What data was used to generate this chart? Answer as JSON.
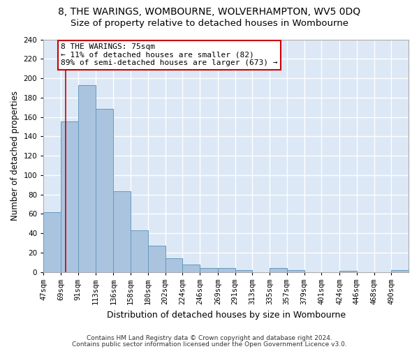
{
  "title1": "8, THE WARINGS, WOMBOURNE, WOLVERHAMPTON, WV5 0DQ",
  "title2": "Size of property relative to detached houses in Wombourne",
  "xlabel": "Distribution of detached houses by size in Wombourne",
  "ylabel": "Number of detached properties",
  "footer1": "Contains HM Land Registry data © Crown copyright and database right 2024.",
  "footer2": "Contains public sector information licensed under the Open Government Licence v3.0.",
  "bin_labels": [
    "47sqm",
    "69sqm",
    "91sqm",
    "113sqm",
    "136sqm",
    "158sqm",
    "180sqm",
    "202sqm",
    "224sqm",
    "246sqm",
    "269sqm",
    "291sqm",
    "313sqm",
    "335sqm",
    "357sqm",
    "379sqm",
    "401sqm",
    "424sqm",
    "446sqm",
    "468sqm",
    "490sqm"
  ],
  "bar_values": [
    62,
    155,
    193,
    168,
    83,
    43,
    27,
    14,
    8,
    4,
    4,
    2,
    0,
    4,
    2,
    0,
    0,
    1,
    0,
    0,
    2
  ],
  "bin_edges": [
    47,
    69,
    91,
    113,
    136,
    158,
    180,
    202,
    224,
    246,
    269,
    291,
    313,
    335,
    357,
    379,
    401,
    424,
    446,
    468,
    490,
    512
  ],
  "bar_color": "#aac4df",
  "bar_edge_color": "#6699bb",
  "annotation_text": "8 THE WARINGS: 75sqm\n← 11% of detached houses are smaller (82)\n89% of semi-detached houses are larger (673) →",
  "annotation_box_color": "#ffffff",
  "annotation_box_edge": "#cc0000",
  "vline_x": 75,
  "vline_color": "#cc0000",
  "ylim": [
    0,
    240
  ],
  "background_color": "#dce8f5",
  "grid_color": "#ffffff",
  "fig_background": "#ffffff",
  "title1_fontsize": 10,
  "title2_fontsize": 9.5,
  "annotation_fontsize": 8,
  "tick_fontsize": 7.5,
  "ylabel_fontsize": 8.5,
  "xlabel_fontsize": 9,
  "footer_fontsize": 6.5
}
